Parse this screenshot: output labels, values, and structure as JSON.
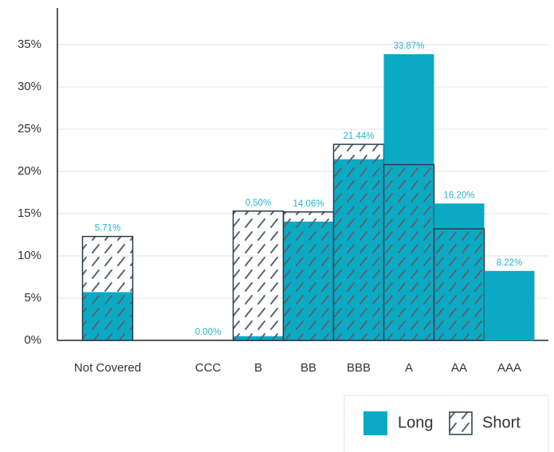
{
  "chart_data": {
    "type": "bar",
    "categories": [
      "Not Covered",
      null,
      "CCC",
      "B",
      "BB",
      "BBB",
      "A",
      "AA",
      "AAA"
    ],
    "series": [
      {
        "name": "Long",
        "color": "#0aaac4",
        "values": [
          5.71,
          null,
          0,
          0.5,
          14.06,
          21.44,
          33.87,
          16.2,
          8.22
        ],
        "value_labels": [
          "5.71%",
          null,
          "0.00%",
          "0.50%",
          "14.06%",
          "21.44%",
          "33.87%",
          "16.20%",
          "8.22%"
        ]
      },
      {
        "name": "Short",
        "color": "#2b3a4a",
        "values": [
          12.3,
          null,
          0,
          15.3,
          15.2,
          23.2,
          20.8,
          13.2,
          0
        ]
      }
    ],
    "ylim": [
      0,
      35
    ],
    "yticks": [
      {
        "value": 0,
        "label": "0%"
      },
      {
        "value": 5,
        "label": "5%"
      },
      {
        "value": 10,
        "label": "10%"
      },
      {
        "value": 15,
        "label": "15%"
      },
      {
        "value": 20,
        "label": "20%"
      },
      {
        "value": 25,
        "label": "25%"
      },
      {
        "value": 30,
        "label": "30%"
      },
      {
        "value": 35,
        "label": "35%"
      }
    ],
    "grid": true,
    "legend": "bottom-right"
  }
}
